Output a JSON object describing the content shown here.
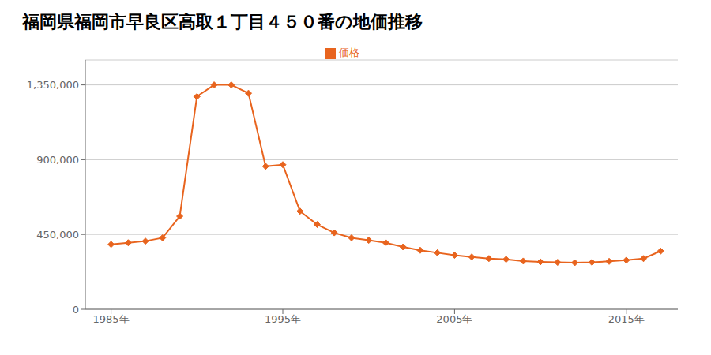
{
  "chart_data": {
    "type": "line",
    "title": "福岡県福岡市早良区高取１丁目４５０番の地価推移",
    "x": [
      1985,
      1986,
      1987,
      1988,
      1989,
      1990,
      1991,
      1992,
      1993,
      1994,
      1995,
      1996,
      1997,
      1998,
      1999,
      2000,
      2001,
      2002,
      2003,
      2004,
      2005,
      2006,
      2007,
      2008,
      2009,
      2010,
      2011,
      2012,
      2013,
      2014,
      2015,
      2016,
      2017
    ],
    "series": [
      {
        "name": "価格",
        "color": "#e8641e",
        "marker": "diamond",
        "values": [
          390000,
          400000,
          410000,
          430000,
          560000,
          1280000,
          1350000,
          1350000,
          1300000,
          860000,
          870000,
          590000,
          510000,
          460000,
          430000,
          415000,
          400000,
          375000,
          355000,
          340000,
          325000,
          315000,
          305000,
          300000,
          290000,
          285000,
          282000,
          280000,
          282000,
          288000,
          295000,
          305000,
          350000
        ]
      }
    ],
    "xlim": [
      1983.5,
      2018
    ],
    "xticks": [
      {
        "value": 1985,
        "label": "1985年"
      },
      {
        "value": 1995,
        "label": "1995年"
      },
      {
        "value": 2005,
        "label": "2005年"
      },
      {
        "value": 2015,
        "label": "2015年"
      }
    ],
    "ylim": [
      0,
      1500000
    ],
    "yticks": [
      0,
      {
        "value": 450000,
        "label": "450,000"
      },
      {
        "value": 900000,
        "label": "900,000"
      },
      {
        "value": 1350000,
        "label": "1,350,000"
      }
    ],
    "grid": true,
    "legend": "top"
  }
}
